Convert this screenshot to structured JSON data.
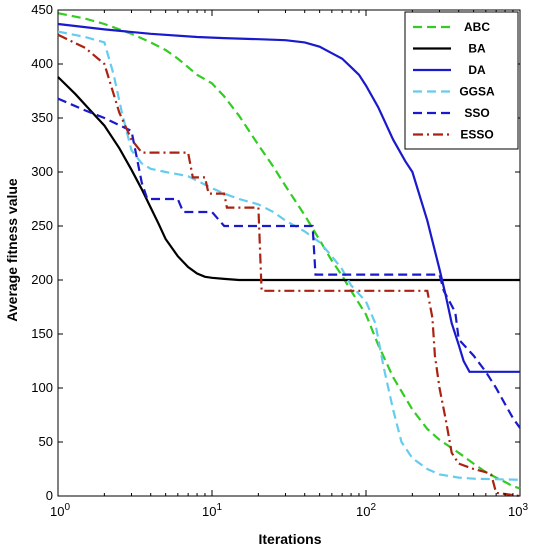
{
  "chart_data": {
    "type": "line",
    "xlabel": "Iterations",
    "ylabel": "Average fitness value",
    "xscale": "log",
    "xlim": [
      1,
      1000
    ],
    "ylim": [
      0,
      450
    ],
    "x_ticks": [
      1,
      10,
      100,
      1000
    ],
    "x_tick_labels": [
      {
        "base": "10",
        "exp": "0"
      },
      {
        "base": "10",
        "exp": "1"
      },
      {
        "base": "10",
        "exp": "2"
      },
      {
        "base": "10",
        "exp": "3"
      }
    ],
    "y_ticks": [
      0,
      50,
      100,
      150,
      200,
      250,
      300,
      350,
      400,
      450
    ],
    "grid": false,
    "legend_position": "top-right",
    "series": [
      {
        "name": "ABC",
        "color": "#33cc22",
        "dash": "dashed",
        "points": [
          [
            1,
            447
          ],
          [
            1.5,
            442
          ],
          [
            2,
            437
          ],
          [
            3,
            428
          ],
          [
            4,
            420
          ],
          [
            5,
            413
          ],
          [
            6,
            405
          ],
          [
            7,
            397
          ],
          [
            8,
            390
          ],
          [
            10,
            382
          ],
          [
            12,
            370
          ],
          [
            15,
            352
          ],
          [
            20,
            325
          ],
          [
            25,
            305
          ],
          [
            30,
            287
          ],
          [
            40,
            260
          ],
          [
            50,
            237
          ],
          [
            60,
            218
          ],
          [
            70,
            204
          ],
          [
            80,
            190
          ],
          [
            100,
            168
          ],
          [
            120,
            140
          ],
          [
            150,
            110
          ],
          [
            200,
            80
          ],
          [
            250,
            62
          ],
          [
            300,
            52
          ],
          [
            400,
            40
          ],
          [
            500,
            30
          ],
          [
            600,
            22
          ],
          [
            700,
            17
          ],
          [
            800,
            13
          ],
          [
            900,
            9
          ],
          [
            1000,
            7
          ]
        ]
      },
      {
        "name": "BA",
        "color": "#000000",
        "dash": "solid",
        "points": [
          [
            1,
            388
          ],
          [
            1.3,
            372
          ],
          [
            1.6,
            358
          ],
          [
            2,
            343
          ],
          [
            2.5,
            322
          ],
          [
            3,
            302
          ],
          [
            3.5,
            284
          ],
          [
            4,
            267
          ],
          [
            4.5,
            252
          ],
          [
            5,
            238
          ],
          [
            6,
            222
          ],
          [
            7,
            212
          ],
          [
            8,
            206
          ],
          [
            9,
            203
          ],
          [
            10,
            202
          ],
          [
            12,
            201
          ],
          [
            15,
            200
          ],
          [
            20,
            200
          ],
          [
            50,
            200
          ],
          [
            100,
            200
          ],
          [
            300,
            200
          ],
          [
            1000,
            200
          ]
        ]
      },
      {
        "name": "DA",
        "color": "#1a1acc",
        "dash": "solid",
        "points": [
          [
            1,
            437
          ],
          [
            2,
            432
          ],
          [
            4,
            428
          ],
          [
            8,
            425
          ],
          [
            12,
            424
          ],
          [
            20,
            423
          ],
          [
            30,
            422
          ],
          [
            40,
            420
          ],
          [
            50,
            416
          ],
          [
            60,
            410
          ],
          [
            70,
            405
          ],
          [
            80,
            397
          ],
          [
            90,
            390
          ],
          [
            100,
            380
          ],
          [
            120,
            360
          ],
          [
            150,
            330
          ],
          [
            180,
            310
          ],
          [
            200,
            300
          ],
          [
            250,
            255
          ],
          [
            300,
            210
          ],
          [
            330,
            185
          ],
          [
            360,
            160
          ],
          [
            400,
            140
          ],
          [
            430,
            125
          ],
          [
            470,
            115
          ],
          [
            1000,
            115
          ]
        ]
      },
      {
        "name": "GGSA",
        "color": "#66ccee",
        "dash": "dashed",
        "points": [
          [
            1,
            430
          ],
          [
            1.5,
            425
          ],
          [
            2,
            420
          ],
          [
            2.3,
            390
          ],
          [
            2.6,
            355
          ],
          [
            3,
            320
          ],
          [
            3.5,
            308
          ],
          [
            4,
            303
          ],
          [
            5,
            300
          ],
          [
            6,
            298
          ],
          [
            7,
            296
          ],
          [
            8,
            292
          ],
          [
            10,
            285
          ],
          [
            12,
            280
          ],
          [
            15,
            275
          ],
          [
            20,
            270
          ],
          [
            25,
            263
          ],
          [
            30,
            255
          ],
          [
            40,
            245
          ],
          [
            50,
            235
          ],
          [
            60,
            222
          ],
          [
            70,
            210
          ],
          [
            80,
            195
          ],
          [
            100,
            180
          ],
          [
            115,
            160
          ],
          [
            130,
            120
          ],
          [
            150,
            80
          ],
          [
            170,
            50
          ],
          [
            200,
            35
          ],
          [
            250,
            25
          ],
          [
            300,
            20
          ],
          [
            400,
            17
          ],
          [
            500,
            16
          ],
          [
            1000,
            15
          ]
        ]
      },
      {
        "name": "SSO",
        "color": "#1a1acc",
        "dash": "dashed",
        "points": [
          [
            1,
            368
          ],
          [
            1.5,
            357
          ],
          [
            2,
            350
          ],
          [
            3,
            338
          ],
          [
            3.5,
            290
          ],
          [
            3.8,
            275
          ],
          [
            6,
            275
          ],
          [
            6.5,
            263
          ],
          [
            10,
            263
          ],
          [
            12,
            250
          ],
          [
            25,
            250
          ],
          [
            45,
            250
          ],
          [
            47,
            205
          ],
          [
            200,
            205
          ],
          [
            300,
            205
          ],
          [
            320,
            190
          ],
          [
            380,
            170
          ],
          [
            400,
            145
          ],
          [
            500,
            130
          ],
          [
            600,
            115
          ],
          [
            700,
            100
          ],
          [
            800,
            85
          ],
          [
            900,
            72
          ],
          [
            1000,
            63
          ]
        ]
      },
      {
        "name": "ESSO",
        "color": "#aa2211",
        "dash": "dashdot",
        "points": [
          [
            1,
            427
          ],
          [
            1.5,
            415
          ],
          [
            2,
            400
          ],
          [
            2.5,
            355
          ],
          [
            3,
            330
          ],
          [
            3.5,
            318
          ],
          [
            7,
            318
          ],
          [
            7.5,
            295
          ],
          [
            9,
            295
          ],
          [
            9.5,
            280
          ],
          [
            12,
            280
          ],
          [
            12.5,
            267
          ],
          [
            20,
            267
          ],
          [
            21,
            190
          ],
          [
            100,
            190
          ],
          [
            250,
            190
          ],
          [
            270,
            165
          ],
          [
            280,
            130
          ],
          [
            300,
            100
          ],
          [
            330,
            70
          ],
          [
            360,
            40
          ],
          [
            400,
            30
          ],
          [
            500,
            25
          ],
          [
            600,
            22
          ],
          [
            650,
            20
          ],
          [
            700,
            3
          ],
          [
            1000,
            0
          ]
        ]
      }
    ]
  }
}
